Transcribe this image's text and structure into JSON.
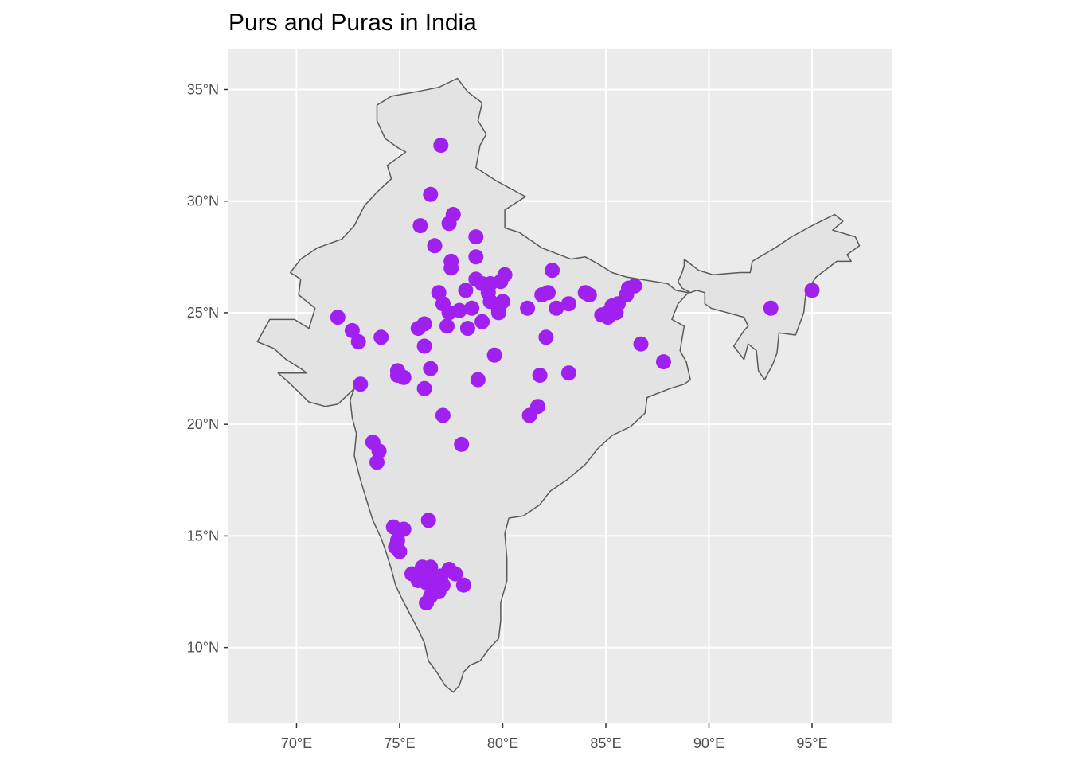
{
  "title": "Purs and Puras in India",
  "colors": {
    "panel_background": "#ebebeb",
    "grid": "#ffffff",
    "country_fill": "#e3e3e3",
    "country_border": "#5a5a5a",
    "point": "#a020f0",
    "axis_text": "#4d4d4d"
  },
  "chart_data": {
    "type": "scatter",
    "title": "Purs and Puras in India",
    "xlabel": "",
    "ylabel": "",
    "xlim": [
      66.7,
      98.9
    ],
    "ylim": [
      6.6,
      36.8
    ],
    "x_ticks": [
      70,
      75,
      80,
      85,
      90,
      95
    ],
    "x_tick_labels": [
      "70°E",
      "75°E",
      "80°E",
      "85°E",
      "90°E",
      "95°E"
    ],
    "y_ticks": [
      10,
      15,
      20,
      25,
      30,
      35
    ],
    "y_tick_labels": [
      "10°N",
      "15°N",
      "20°N",
      "25°N",
      "30°N",
      "35°N"
    ],
    "grid": true,
    "legend": "none",
    "boundary": [
      [
        70.6,
        24.3
      ],
      [
        69.9,
        24.7
      ],
      [
        68.7,
        24.7
      ],
      [
        68.1,
        23.7
      ],
      [
        68.9,
        23.4
      ],
      [
        69.5,
        22.9
      ],
      [
        70.2,
        22.5
      ],
      [
        70.5,
        22.3
      ],
      [
        69.1,
        22.3
      ],
      [
        69.6,
        21.9
      ],
      [
        70.6,
        21.0
      ],
      [
        71.4,
        20.8
      ],
      [
        72.0,
        20.9
      ],
      [
        72.8,
        21.6
      ],
      [
        72.6,
        21.1
      ],
      [
        72.7,
        20.3
      ],
      [
        72.9,
        19.6
      ],
      [
        72.8,
        18.6
      ],
      [
        73.1,
        17.5
      ],
      [
        73.4,
        16.6
      ],
      [
        73.7,
        15.7
      ],
      [
        74.1,
        14.9
      ],
      [
        74.3,
        14.4
      ],
      [
        74.6,
        13.5
      ],
      [
        74.8,
        12.8
      ],
      [
        75.1,
        12.2
      ],
      [
        75.5,
        11.5
      ],
      [
        75.9,
        10.8
      ],
      [
        76.2,
        10.2
      ],
      [
        76.4,
        9.4
      ],
      [
        76.8,
        8.9
      ],
      [
        77.2,
        8.3
      ],
      [
        77.6,
        8.0
      ],
      [
        77.9,
        8.3
      ],
      [
        78.1,
        8.9
      ],
      [
        78.4,
        9.2
      ],
      [
        78.9,
        9.4
      ],
      [
        79.3,
        9.9
      ],
      [
        79.8,
        10.4
      ],
      [
        79.9,
        11.2
      ],
      [
        79.9,
        12.0
      ],
      [
        80.2,
        13.0
      ],
      [
        80.2,
        14.0
      ],
      [
        80.1,
        15.1
      ],
      [
        80.3,
        15.8
      ],
      [
        81.0,
        15.9
      ],
      [
        81.8,
        16.4
      ],
      [
        82.3,
        17.0
      ],
      [
        83.1,
        17.5
      ],
      [
        84.0,
        18.2
      ],
      [
        84.6,
        18.9
      ],
      [
        85.3,
        19.5
      ],
      [
        86.2,
        19.9
      ],
      [
        86.9,
        20.5
      ],
      [
        87.0,
        21.2
      ],
      [
        88.1,
        21.6
      ],
      [
        88.8,
        21.8
      ],
      [
        89.1,
        22.0
      ],
      [
        88.9,
        22.8
      ],
      [
        88.6,
        23.3
      ],
      [
        88.8,
        24.4
      ],
      [
        88.2,
        24.7
      ],
      [
        88.5,
        25.4
      ],
      [
        89.0,
        25.9
      ],
      [
        88.4,
        26.0
      ],
      [
        88.0,
        26.3
      ],
      [
        86.0,
        26.6
      ],
      [
        85.3,
        26.8
      ],
      [
        84.6,
        27.2
      ],
      [
        84.0,
        27.5
      ],
      [
        83.3,
        27.4
      ],
      [
        81.9,
        27.9
      ],
      [
        80.8,
        28.6
      ],
      [
        80.1,
        28.8
      ],
      [
        80.1,
        29.6
      ],
      [
        81.1,
        30.2
      ],
      [
        79.7,
        30.9
      ],
      [
        78.7,
        31.5
      ],
      [
        78.9,
        32.5
      ],
      [
        79.2,
        33.0
      ],
      [
        78.8,
        33.6
      ],
      [
        79.0,
        34.4
      ],
      [
        78.3,
        34.9
      ],
      [
        77.8,
        35.5
      ],
      [
        76.9,
        35.1
      ],
      [
        75.8,
        34.9
      ],
      [
        74.6,
        34.7
      ],
      [
        73.9,
        34.3
      ],
      [
        73.9,
        33.6
      ],
      [
        74.3,
        32.8
      ],
      [
        74.9,
        32.4
      ],
      [
        75.3,
        32.2
      ],
      [
        74.4,
        31.6
      ],
      [
        74.6,
        31.0
      ],
      [
        73.9,
        30.4
      ],
      [
        73.3,
        29.8
      ],
      [
        72.8,
        28.9
      ],
      [
        72.2,
        28.3
      ],
      [
        71.0,
        27.9
      ],
      [
        70.2,
        27.4
      ],
      [
        69.7,
        26.8
      ],
      [
        70.2,
        26.5
      ],
      [
        70.1,
        25.8
      ],
      [
        70.9,
        25.2
      ],
      [
        70.6,
        24.3
      ]
    ],
    "boundary_east": [
      [
        88.5,
        26.4
      ],
      [
        88.7,
        26.8
      ],
      [
        88.8,
        27.1
      ],
      [
        88.8,
        27.4
      ],
      [
        89.5,
        26.9
      ],
      [
        90.2,
        26.7
      ],
      [
        91.5,
        26.8
      ],
      [
        92.0,
        26.8
      ],
      [
        92.1,
        27.3
      ],
      [
        93.2,
        27.9
      ],
      [
        94.0,
        28.4
      ],
      [
        95.0,
        28.9
      ],
      [
        96.1,
        29.4
      ],
      [
        96.5,
        29.1
      ],
      [
        96.0,
        28.7
      ],
      [
        97.1,
        28.4
      ],
      [
        97.3,
        28.0
      ],
      [
        96.7,
        27.6
      ],
      [
        96.9,
        27.3
      ],
      [
        96.2,
        27.3
      ],
      [
        95.2,
        26.6
      ],
      [
        94.7,
        25.9
      ],
      [
        94.6,
        25.0
      ],
      [
        94.2,
        24.0
      ],
      [
        93.4,
        24.1
      ],
      [
        93.3,
        23.2
      ],
      [
        93.1,
        22.7
      ],
      [
        92.7,
        22.0
      ],
      [
        92.4,
        22.4
      ],
      [
        92.3,
        23.3
      ],
      [
        91.9,
        23.6
      ],
      [
        91.7,
        22.9
      ],
      [
        91.2,
        23.5
      ],
      [
        91.7,
        24.2
      ],
      [
        91.9,
        24.4
      ],
      [
        91.7,
        24.8
      ],
      [
        90.1,
        25.2
      ],
      [
        89.8,
        25.4
      ],
      [
        89.8,
        25.9
      ],
      [
        89.4,
        26.0
      ],
      [
        89.1,
        25.9
      ],
      [
        88.7,
        26.1
      ],
      [
        88.5,
        26.4
      ]
    ],
    "points": [
      [
        77.0,
        32.5
      ],
      [
        76.5,
        30.3
      ],
      [
        77.6,
        29.4
      ],
      [
        77.4,
        29.0
      ],
      [
        76.0,
        28.9
      ],
      [
        78.7,
        28.4
      ],
      [
        76.7,
        28.0
      ],
      [
        78.7,
        27.5
      ],
      [
        77.5,
        27.3
      ],
      [
        77.5,
        27.0
      ],
      [
        82.4,
        26.9
      ],
      [
        80.1,
        26.7
      ],
      [
        78.7,
        26.5
      ],
      [
        79.0,
        26.3
      ],
      [
        79.4,
        26.3
      ],
      [
        79.9,
        26.4
      ],
      [
        86.4,
        26.2
      ],
      [
        86.1,
        26.1
      ],
      [
        78.2,
        26.0
      ],
      [
        76.9,
        25.9
      ],
      [
        79.3,
        25.9
      ],
      [
        82.2,
        25.9
      ],
      [
        81.9,
        25.8
      ],
      [
        84.0,
        25.9
      ],
      [
        84.2,
        25.8
      ],
      [
        95.0,
        26.0
      ],
      [
        86.0,
        25.8
      ],
      [
        79.4,
        25.5
      ],
      [
        80.0,
        25.5
      ],
      [
        77.1,
        25.4
      ],
      [
        83.2,
        25.4
      ],
      [
        85.6,
        25.4
      ],
      [
        82.6,
        25.2
      ],
      [
        81.2,
        25.2
      ],
      [
        77.9,
        25.1
      ],
      [
        78.5,
        25.2
      ],
      [
        85.3,
        25.3
      ],
      [
        79.8,
        25.1
      ],
      [
        77.4,
        25.0
      ],
      [
        79.8,
        25.0
      ],
      [
        85.1,
        25.0
      ],
      [
        93.0,
        25.2
      ],
      [
        84.8,
        24.9
      ],
      [
        85.5,
        25.0
      ],
      [
        85.1,
        24.8
      ],
      [
        72.0,
        24.8
      ],
      [
        79.0,
        24.6
      ],
      [
        76.2,
        24.5
      ],
      [
        75.9,
        24.3
      ],
      [
        78.3,
        24.3
      ],
      [
        77.3,
        24.4
      ],
      [
        72.7,
        24.2
      ],
      [
        74.1,
        23.9
      ],
      [
        73.0,
        23.7
      ],
      [
        82.1,
        23.9
      ],
      [
        86.7,
        23.6
      ],
      [
        76.2,
        23.5
      ],
      [
        79.6,
        23.1
      ],
      [
        87.8,
        22.8
      ],
      [
        76.5,
        22.5
      ],
      [
        74.9,
        22.4
      ],
      [
        81.8,
        22.2
      ],
      [
        83.2,
        22.3
      ],
      [
        75.2,
        22.1
      ],
      [
        74.9,
        22.2
      ],
      [
        78.8,
        22.0
      ],
      [
        73.1,
        21.8
      ],
      [
        76.2,
        21.6
      ],
      [
        81.7,
        20.8
      ],
      [
        81.3,
        20.4
      ],
      [
        77.1,
        20.4
      ],
      [
        73.7,
        19.2
      ],
      [
        78.0,
        19.1
      ],
      [
        74.0,
        18.8
      ],
      [
        73.9,
        18.3
      ],
      [
        76.4,
        15.7
      ],
      [
        74.7,
        15.4
      ],
      [
        75.2,
        15.3
      ],
      [
        74.9,
        14.8
      ],
      [
        74.8,
        14.5
      ],
      [
        75.0,
        14.3
      ],
      [
        76.5,
        13.6
      ],
      [
        76.1,
        13.6
      ],
      [
        77.4,
        13.5
      ],
      [
        75.6,
        13.3
      ],
      [
        76.0,
        13.2
      ],
      [
        76.7,
        13.2
      ],
      [
        77.0,
        13.2
      ],
      [
        77.7,
        13.3
      ],
      [
        75.9,
        13.0
      ],
      [
        76.3,
        12.9
      ],
      [
        77.1,
        12.8
      ],
      [
        78.1,
        12.8
      ],
      [
        76.6,
        12.7
      ],
      [
        76.9,
        12.5
      ],
      [
        76.5,
        12.3
      ],
      [
        76.3,
        12.0
      ]
    ]
  }
}
